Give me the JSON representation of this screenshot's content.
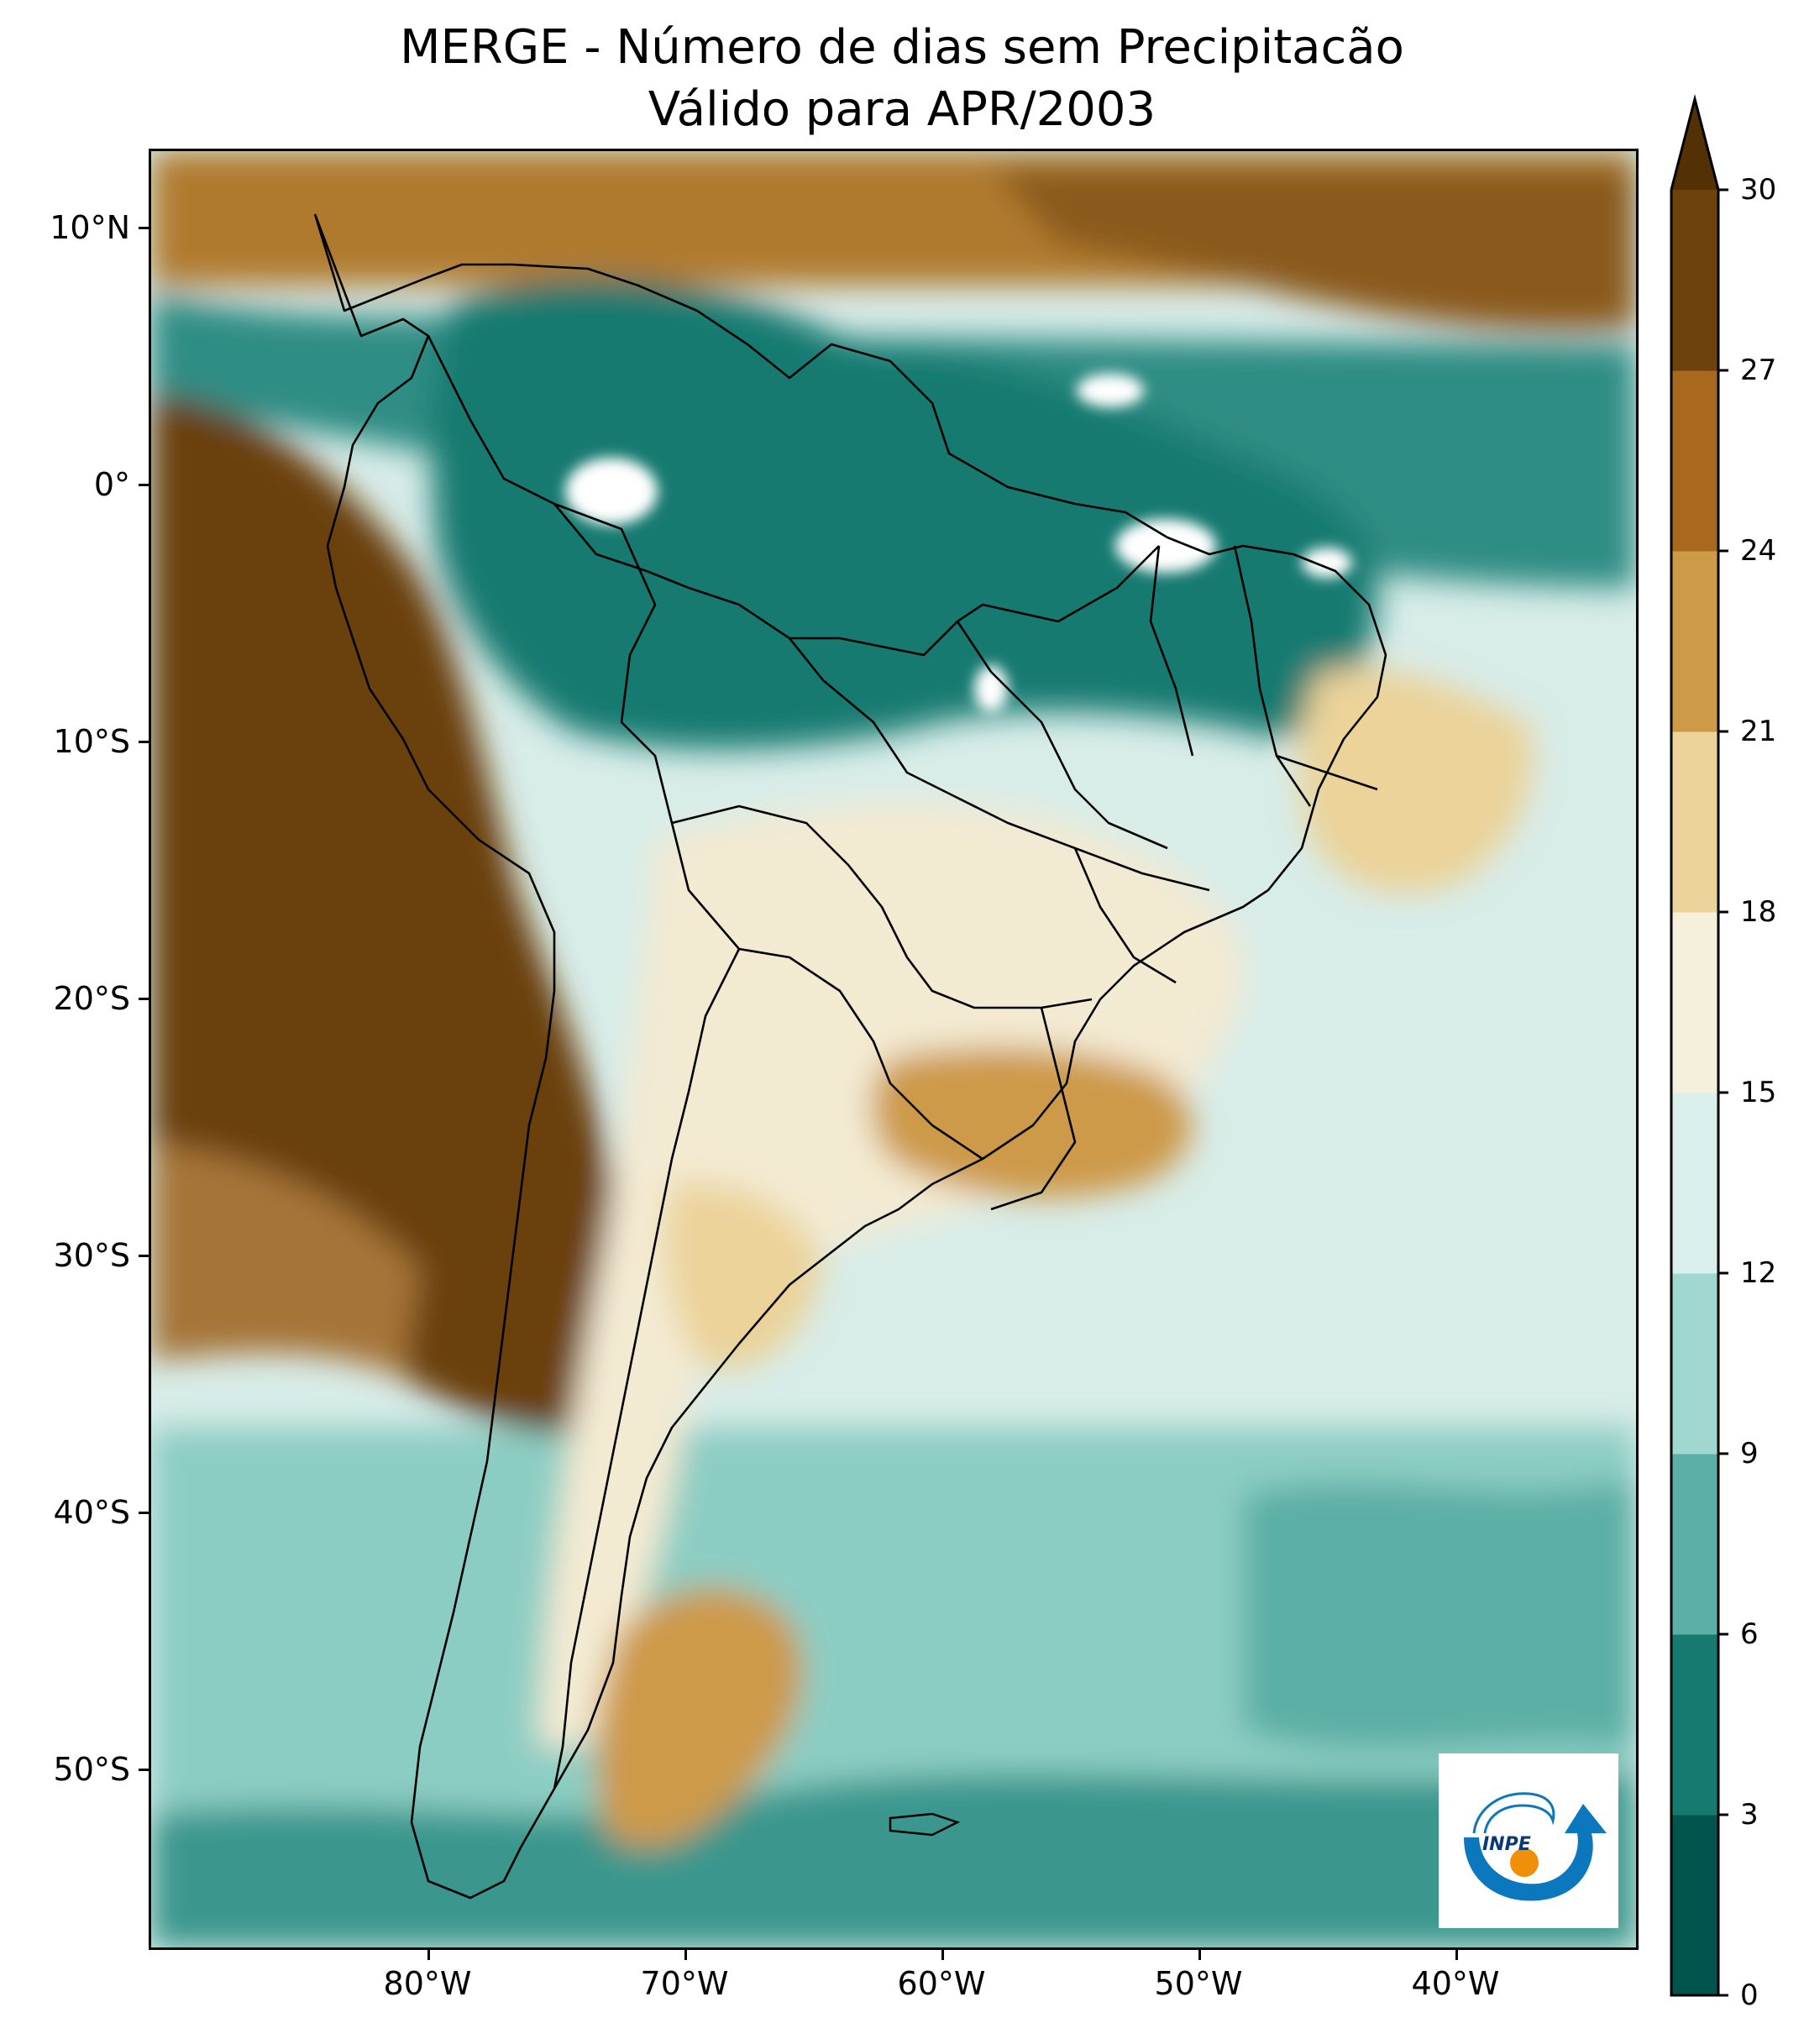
{
  "title": {
    "line1": "MERGE - Número de dias sem Precipitacão",
    "line2": "Válido para APR/2003"
  },
  "map": {
    "projection": "PlateCarree",
    "lon_range": [
      -90,
      -32
    ],
    "lat_range": [
      -57,
      13
    ],
    "ocean_base_color": "#d8ece8",
    "ocean_south_color": "#5eb0a6",
    "pacific_color": "#6a3f0a",
    "amazon_color": "#1f8178",
    "land_dry_color": "#f3ead2",
    "land_tan_color": "#dcb772",
    "border_color": "#000000",
    "no_data_color": "#ffffff"
  },
  "axes": {
    "y_ticks": [
      {
        "label": "10°N",
        "lat": 10
      },
      {
        "label": "0°",
        "lat": 0
      },
      {
        "label": "10°S",
        "lat": -10
      },
      {
        "label": "20°S",
        "lat": -20
      },
      {
        "label": "30°S",
        "lat": -30
      },
      {
        "label": "40°S",
        "lat": -40
      },
      {
        "label": "50°S",
        "lat": -50
      }
    ],
    "x_ticks": [
      {
        "label": "80°W",
        "lon": -80
      },
      {
        "label": "70°W",
        "lon": -70
      },
      {
        "label": "60°W",
        "lon": -60
      },
      {
        "label": "50°W",
        "lon": -50
      },
      {
        "label": "40°W",
        "lon": -40
      }
    ]
  },
  "colorbar": {
    "levels": [
      0,
      3,
      6,
      9,
      12,
      15,
      18,
      21,
      24,
      27,
      30
    ],
    "colors": [
      "#01554c",
      "#177a71",
      "#5cafa5",
      "#a0d8cf",
      "#daf0ed",
      "#f5f0dc",
      "#ebd39a",
      "#cd9a48",
      "#a8691e",
      "#6e420b"
    ],
    "extend_color": "#543005",
    "extend": "max"
  },
  "logo": {
    "text": "INPE",
    "arrow_color": "#0b78be",
    "dot_color": "#f0900a"
  }
}
